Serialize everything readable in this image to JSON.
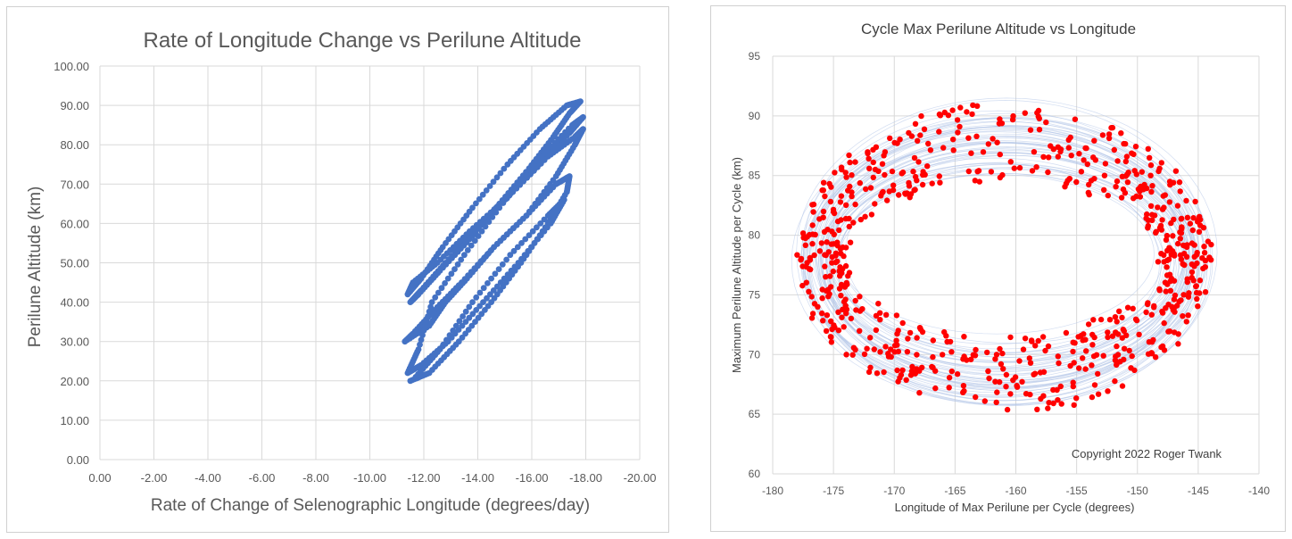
{
  "chart_data": [
    {
      "type": "scatter",
      "title": "Rate of Longitude Change vs Perilune Altitude",
      "xlabel": "Rate of Change of Selenographic Longitude (degrees/day)",
      "ylabel": "Perilune Altitude (km)",
      "xlim": [
        0,
        -20
      ],
      "ylim": [
        0,
        100
      ],
      "x_ticks": [
        "0.00",
        "-2.00",
        "-4.00",
        "-6.00",
        "-8.00",
        "-10.00",
        "-12.00",
        "-14.00",
        "-16.00",
        "-18.00",
        "-20.00"
      ],
      "y_ticks": [
        "0.00",
        "10.00",
        "20.00",
        "30.00",
        "40.00",
        "50.00",
        "60.00",
        "70.00",
        "80.00",
        "90.00",
        "100.00"
      ],
      "x_reversed": true,
      "grid": true,
      "marker_color": "#4472C4",
      "series": [
        {
          "points": [
            [
              -11.5,
              20
            ],
            [
              -12.2,
              22
            ],
            [
              -13.3,
              30
            ],
            [
              -14.5,
              40
            ],
            [
              -15.6,
              50
            ],
            [
              -16.6,
              60
            ],
            [
              -17.3,
              68
            ],
            [
              -17.4,
              72
            ],
            [
              -16.9,
              70
            ],
            [
              -15.8,
              62
            ],
            [
              -14.6,
              54
            ],
            [
              -13.6,
              46
            ],
            [
              -12.8,
              40
            ],
            [
              -12.2,
              34
            ],
            [
              -11.3,
              30
            ],
            [
              -11.6,
              32
            ],
            [
              -12.4,
              38
            ],
            [
              -13.4,
              45
            ],
            [
              -14.6,
              54
            ],
            [
              -15.8,
              62
            ],
            [
              -16.9,
              72
            ],
            [
              -17.6,
              80
            ],
            [
              -17.9,
              84
            ],
            [
              -17.6,
              82
            ],
            [
              -16.6,
              77
            ],
            [
              -15.3,
              68
            ],
            [
              -14.0,
              59
            ],
            [
              -12.8,
              50
            ],
            [
              -11.9,
              43
            ],
            [
              -11.5,
              40
            ],
            [
              -11.8,
              42
            ],
            [
              -12.6,
              48
            ],
            [
              -13.7,
              56
            ],
            [
              -14.8,
              65
            ],
            [
              -15.9,
              74
            ],
            [
              -16.8,
              82
            ],
            [
              -17.4,
              88
            ],
            [
              -17.8,
              91
            ],
            [
              -17.3,
              90
            ],
            [
              -16.3,
              84
            ],
            [
              -15.1,
              75
            ],
            [
              -13.8,
              64
            ],
            [
              -12.7,
              54
            ],
            [
              -11.9,
              46
            ],
            [
              -11.4,
              42
            ],
            [
              -11.6,
              45
            ],
            [
              -12.5,
              50
            ],
            [
              -13.7,
              58
            ],
            [
              -15.0,
              66
            ],
            [
              -16.4,
              76
            ],
            [
              -17.4,
              83
            ],
            [
              -17.9,
              87
            ],
            [
              -17.5,
              85
            ],
            [
              -16.2,
              76
            ],
            [
              -14.8,
              64
            ],
            [
              -13.5,
              52
            ],
            [
              -12.3,
              40
            ],
            [
              -11.8,
              28
            ],
            [
              -11.4,
              22
            ],
            [
              -11.9,
              24
            ],
            [
              -12.9,
              30
            ],
            [
              -14.2,
              40
            ],
            [
              -15.5,
              50
            ],
            [
              -16.7,
              60
            ],
            [
              -17.2,
              66
            ],
            [
              -16.6,
              62
            ],
            [
              -15.2,
              52
            ],
            [
              -13.8,
              40
            ],
            [
              -12.6,
              28
            ],
            [
              -11.7,
              21
            ]
          ]
        }
      ]
    },
    {
      "type": "scatter",
      "title": "Cycle Max Perilune Altitude vs Longitude",
      "xlabel": "Longitude of Max Perilune per Cycle (degrees)",
      "ylabel": "Maximum Perilune Altitude per Cycle (km)",
      "xlim": [
        -180,
        -140
      ],
      "ylim": [
        60,
        95
      ],
      "x_ticks": [
        "-180",
        "-175",
        "-170",
        "-165",
        "-160",
        "-155",
        "-150",
        "-145",
        "-140"
      ],
      "y_ticks": [
        "60",
        "65",
        "70",
        "75",
        "80",
        "85",
        "90",
        "95"
      ],
      "grid": true,
      "marker_color": "#FF0000",
      "background_trace_color": "#B4C7E7",
      "annotation": "Copyright 2022 Roger Twank",
      "point_cloud": {
        "shape": "annular ring",
        "center": [
          -161,
          78
        ],
        "outer_semi_axes": [
          17,
          13
        ],
        "inner_semi_axes": [
          13,
          6.5
        ]
      }
    }
  ]
}
